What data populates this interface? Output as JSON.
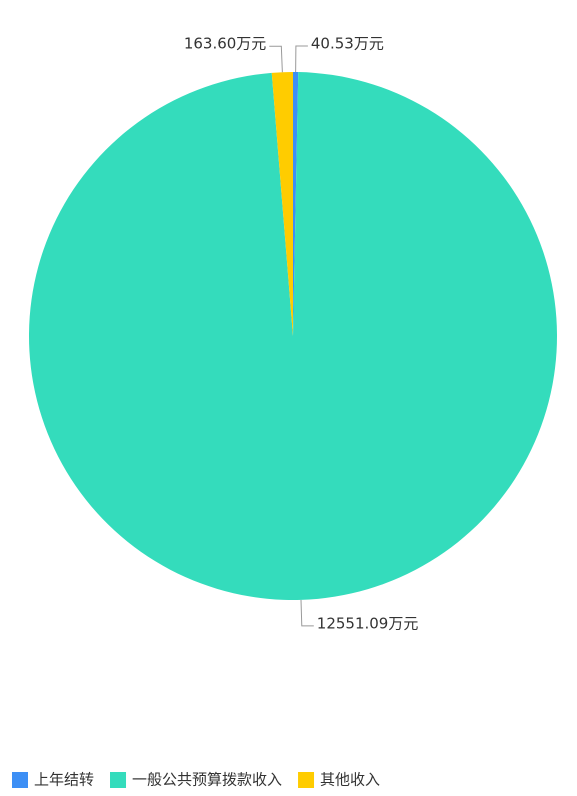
{
  "chart_data": {
    "type": "pie",
    "categories": [
      "上年结转",
      "一般公共预算拨款收入",
      "其他收入"
    ],
    "values": [
      40.53,
      12551.09,
      163.6
    ],
    "value_labels": [
      "40.53万元",
      "12551.09万元",
      "163.60万元"
    ],
    "colors": [
      "#3d8ff5",
      "#34dcbc",
      "#ffcc00"
    ],
    "legend": "bottom"
  }
}
